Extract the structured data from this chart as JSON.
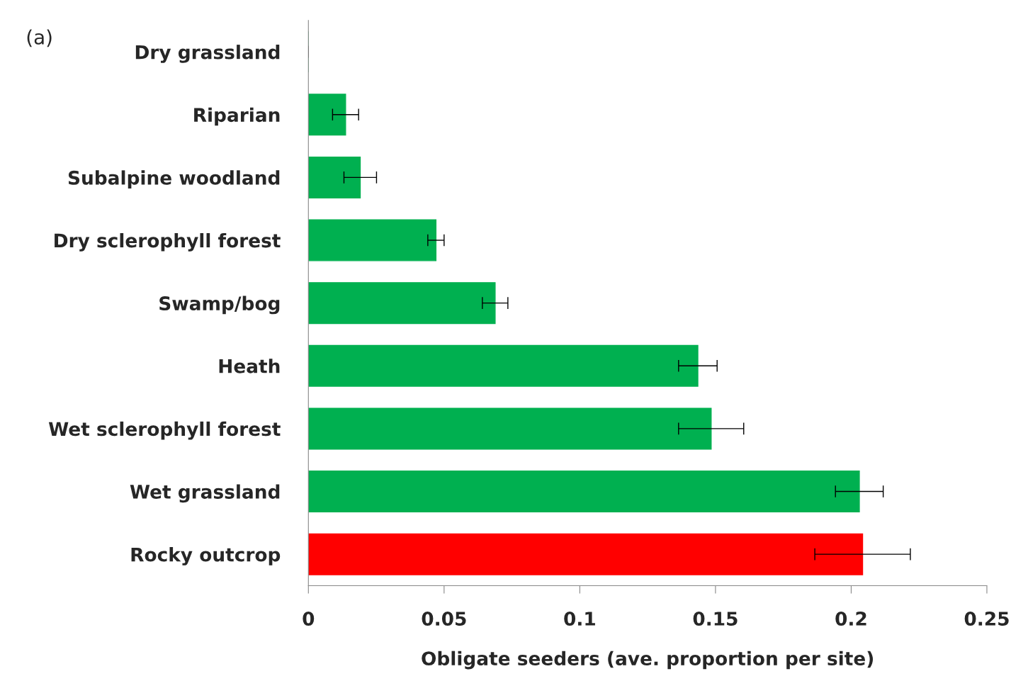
{
  "chart_data": {
    "type": "bar",
    "orientation": "horizontal",
    "annotations": [
      "(a)"
    ],
    "xlabel": "Obligate seeders (ave. proportion per site)",
    "categories": [
      "Dry grassland",
      "Riparian",
      "Subalpine woodland",
      "Dry sclerophyll forest",
      "Swamp/bog",
      "Heath",
      "Wet sclerophyll forest",
      "Wet grassland",
      "Rocky outcrop"
    ],
    "values": [
      0,
      0.0137,
      0.0191,
      0.047,
      0.0688,
      0.1435,
      0.1484,
      0.203,
      0.2042
    ],
    "errors": [
      0,
      0.0048,
      0.006,
      0.003,
      0.0047,
      0.0071,
      0.012,
      0.0088,
      0.0176
    ],
    "colors": [
      "#00b050",
      "#00b050",
      "#00b050",
      "#00b050",
      "#00b050",
      "#00b050",
      "#00b050",
      "#00b050",
      "#ff0000"
    ],
    "xlim": [
      0,
      0.25
    ],
    "xticks": [
      0,
      0.05,
      0.1,
      0.15,
      0.2,
      0.25
    ],
    "grid": false,
    "legend": false
  }
}
